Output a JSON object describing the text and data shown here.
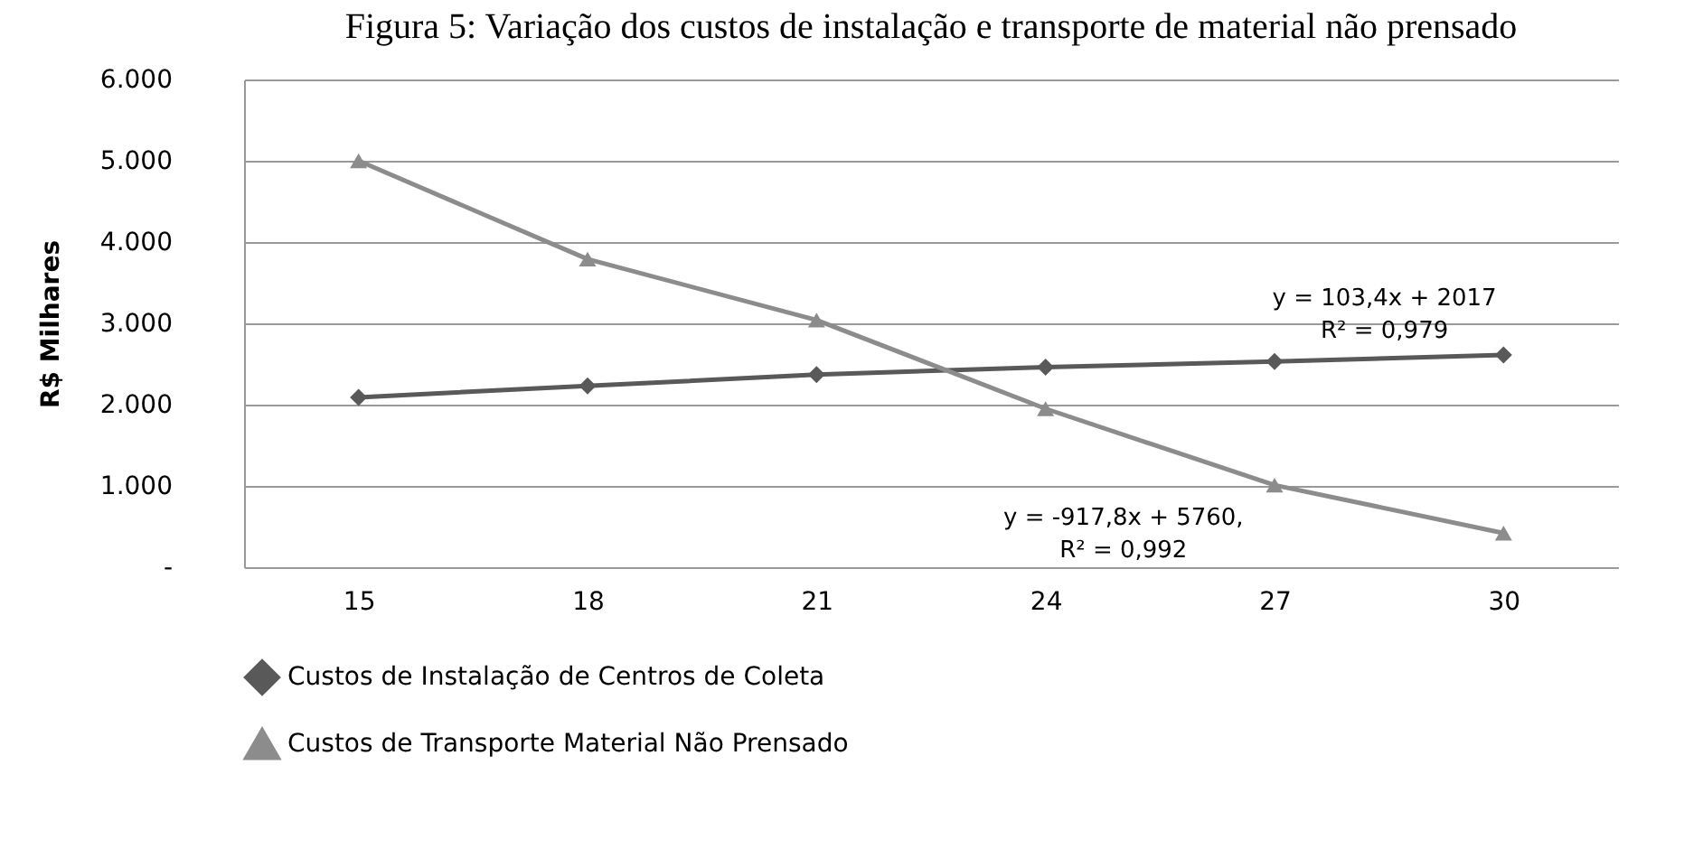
{
  "chart_data": {
    "type": "line",
    "title": "Figura 5: Variação dos custos de instalação e transporte de material não prensado",
    "ylabel": "R$ Milhares",
    "categories": [
      "15",
      "18",
      "21",
      "24",
      "27",
      "30"
    ],
    "series": [
      {
        "name": "Custos de Instalação de Centros de Coleta",
        "color": "#595959",
        "marker": "diamond",
        "values": [
          2090,
          2230,
          2370,
          2460,
          2530,
          2610
        ]
      },
      {
        "name": "Custos de Transporte Material Não Prensado",
        "color": "#8c8c8c",
        "marker": "triangle",
        "values": [
          5000,
          3790,
          3040,
          1950,
          1010,
          420
        ]
      }
    ],
    "ylim": [
      0,
      6000
    ],
    "yticks": [
      {
        "value": 0,
        "label": "-"
      },
      {
        "value": 1000,
        "label": "1.000"
      },
      {
        "value": 2000,
        "label": "2.000"
      },
      {
        "value": 3000,
        "label": "3.000"
      },
      {
        "value": 4000,
        "label": "4.000"
      },
      {
        "value": 5000,
        "label": "5.000"
      },
      {
        "value": 6000,
        "label": "6.000"
      }
    ],
    "grid": "y",
    "legend": "bottom",
    "annotations": [
      "y = 103,4x + 2017\nR² = 0,979",
      "y = -917,8x + 5760,\nR² = 0,992"
    ]
  }
}
